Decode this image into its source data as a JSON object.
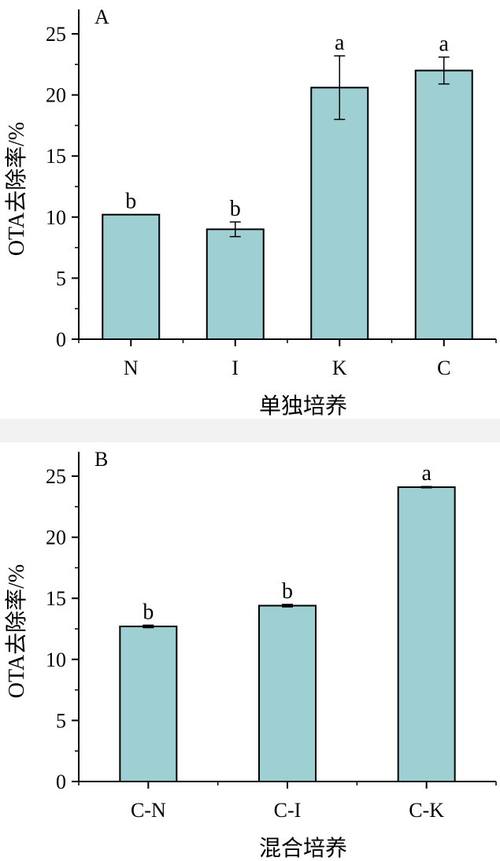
{
  "chart_data": [
    {
      "type": "bar",
      "panel_label": "A",
      "categories": [
        "N",
        "I",
        "K",
        "C"
      ],
      "values": [
        10.2,
        9.0,
        20.6,
        22.0
      ],
      "errors": [
        0.0,
        0.6,
        2.6,
        1.1
      ],
      "significance": [
        "b",
        "b",
        "a",
        "a"
      ],
      "xlabel": "单独培养",
      "ylabel": "OTA去除率/%",
      "ylim": [
        0,
        27
      ],
      "yticks": [
        0,
        5,
        10,
        15,
        20,
        25
      ],
      "bar_color": "#9ecfd3"
    },
    {
      "type": "bar",
      "panel_label": "B",
      "categories": [
        "C-N",
        "C-I",
        "C-K"
      ],
      "values": [
        12.7,
        14.4,
        24.1
      ],
      "errors": [
        0.1,
        0.1,
        0.05
      ],
      "significance": [
        "b",
        "b",
        "a"
      ],
      "xlabel": "混合培养",
      "ylabel": "OTA去除率/%",
      "ylim": [
        0,
        27
      ],
      "yticks": [
        0,
        5,
        10,
        15,
        20,
        25
      ],
      "bar_color": "#9ecfd3"
    }
  ]
}
